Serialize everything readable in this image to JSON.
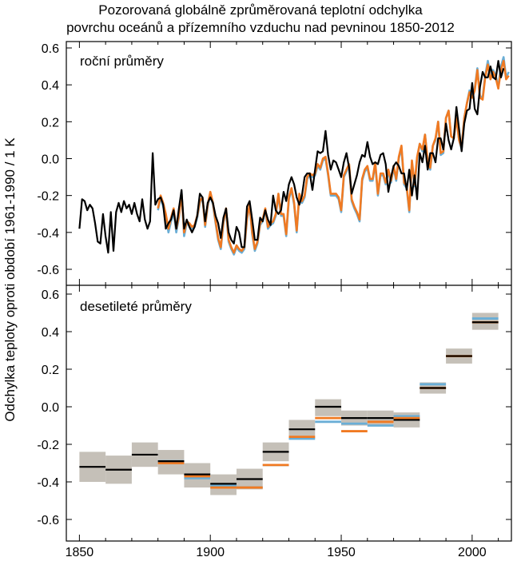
{
  "title_lines": [
    "Pozorovaná globálně zprůměrovaná teplotní odchylka",
    "povrchu oceánů a přízemního vzduchu nad pevninou 1850-2012"
  ],
  "chart_data": {
    "type": "line",
    "title": "Pozorovaná globálně zprůměrovaná teplotní odchylka povrchu oceánů a přízemního vzduchu nad pevninou 1850-2012",
    "ylabel": "Odchylka teploty oproti období 1961-1990  /  1 K",
    "xlabel": "",
    "xlim": [
      1845,
      2015
    ],
    "x_ticks": [
      1850,
      1900,
      1950,
      2000
    ],
    "grid": false,
    "colors": {
      "black": "#000000",
      "blue": "#6aaed6",
      "orange": "#f07a22",
      "uncertainty": "#c5c0b8"
    },
    "panels": [
      {
        "label": "roční průměry",
        "type": "line",
        "ylim": [
          -0.68,
          0.62
        ],
        "y_ticks": [
          -0.6,
          -0.4,
          -0.2,
          0.0,
          0.2,
          0.4,
          0.6
        ],
        "series": [
          {
            "color": "black",
            "x_start": 1850,
            "values": [
              -0.38,
              -0.22,
              -0.23,
              -0.28,
              -0.25,
              -0.27,
              -0.35,
              -0.45,
              -0.46,
              -0.3,
              -0.42,
              -0.51,
              -0.29,
              -0.5,
              -0.29,
              -0.24,
              -0.29,
              -0.23,
              -0.27,
              -0.25,
              -0.3,
              -0.24,
              -0.3,
              -0.34,
              -0.22,
              -0.33,
              -0.38,
              -0.34,
              0.03,
              -0.25,
              -0.22,
              -0.21,
              -0.25,
              -0.38,
              -0.35,
              -0.33,
              -0.28,
              -0.38,
              -0.27,
              -0.17,
              -0.38,
              -0.33,
              -0.37,
              -0.4,
              -0.37,
              -0.31,
              -0.19,
              -0.21,
              -0.34,
              -0.24,
              -0.21,
              -0.24,
              -0.31,
              -0.35,
              -0.43,
              -0.32,
              -0.27,
              -0.4,
              -0.44,
              -0.46,
              -0.37,
              -0.4,
              -0.48,
              -0.48,
              -0.26,
              -0.23,
              -0.33,
              -0.44,
              -0.44,
              -0.32,
              -0.34,
              -0.28,
              -0.33,
              -0.36,
              -0.2,
              -0.28,
              -0.3,
              -0.28,
              -0.18,
              -0.23,
              -0.14,
              -0.1,
              -0.14,
              -0.21,
              -0.25,
              -0.2,
              -0.1,
              -0.08,
              -0.08,
              -0.17,
              -0.06,
              0.04,
              0.03,
              0.04,
              0.15,
              0.02,
              -0.06,
              -0.01,
              -0.02,
              -0.06,
              -0.1,
              -0.02,
              0.03,
              -0.05,
              -0.19,
              -0.14,
              -0.09,
              -0.02,
              0.02,
              0.01,
              0.09,
              0.01,
              -0.03,
              -0.02,
              -0.03,
              0.02,
              0.03,
              -0.03,
              -0.18,
              -0.1,
              -0.04,
              -0.02,
              -0.04,
              -0.08,
              -0.08,
              -0.17,
              -0.06,
              -0.2,
              -0.09,
              -0.22,
              0.03,
              -0.02,
              0.07,
              -0.06,
              0.03,
              0.03,
              -0.02,
              0.11,
              0.11,
              0.05,
              0.19,
              0.1,
              0.05,
              0.11,
              0.28,
              0.16,
              0.04,
              0.19,
              0.26,
              0.27,
              0.41,
              0.27,
              0.24,
              0.39,
              0.47,
              0.44,
              0.44,
              0.5,
              0.44,
              0.43,
              0.53,
              0.44,
              0.49
            ]
          },
          {
            "color": "blue",
            "x_start": 1880,
            "values": [
              -0.28,
              -0.21,
              -0.26,
              -0.31,
              -0.4,
              -0.34,
              -0.29,
              -0.4,
              -0.32,
              -0.18,
              -0.42,
              -0.35,
              -0.36,
              -0.38,
              -0.37,
              -0.32,
              -0.24,
              -0.21,
              -0.37,
              -0.26,
              -0.19,
              -0.25,
              -0.35,
              -0.44,
              -0.49,
              -0.35,
              -0.28,
              -0.45,
              -0.49,
              -0.52,
              -0.48,
              -0.5,
              -0.51,
              -0.49,
              -0.33,
              -0.25,
              -0.41,
              -0.5,
              -0.46,
              -0.36,
              -0.34,
              -0.28,
              -0.38,
              -0.36,
              -0.35,
              -0.31,
              -0.2,
              -0.31,
              -0.31,
              -0.42,
              -0.22,
              -0.17,
              -0.25,
              -0.4,
              -0.2,
              -0.24,
              -0.21,
              -0.11,
              -0.09,
              -0.1,
              -0.09,
              -0.04,
              -0.06,
              -0.01,
              0.0,
              -0.09,
              -0.2,
              -0.2,
              -0.2,
              -0.22,
              -0.29,
              -0.1,
              -0.07,
              -0.04,
              -0.23,
              -0.27,
              -0.3,
              -0.34,
              -0.12,
              -0.07,
              -0.05,
              -0.12,
              -0.12,
              -0.03,
              -0.2,
              -0.09,
              -0.09,
              -0.14,
              -0.07,
              -0.13,
              -0.05,
              -0.12,
              0.0,
              0.06,
              -0.14,
              -0.16,
              -0.29,
              -0.02,
              -0.15,
              0.0,
              0.08,
              0.04,
              0.13,
              -0.02,
              -0.06,
              0.07,
              0.1,
              0.2,
              0.02,
              0.03,
              0.22,
              0.26,
              0.12,
              0.11,
              0.22,
              0.1,
              0.05,
              0.22,
              0.3,
              0.37,
              0.34,
              0.38,
              0.49,
              0.34,
              0.33,
              0.45,
              0.53,
              0.45,
              0.48,
              0.45,
              0.39,
              0.5,
              0.55,
              0.44,
              0.47
            ]
          },
          {
            "color": "orange",
            "x_start": 1880,
            "values": [
              -0.27,
              -0.2,
              -0.24,
              -0.3,
              -0.38,
              -0.32,
              -0.27,
              -0.38,
              -0.31,
              -0.19,
              -0.4,
              -0.34,
              -0.35,
              -0.37,
              -0.36,
              -0.31,
              -0.23,
              -0.21,
              -0.36,
              -0.25,
              -0.18,
              -0.24,
              -0.34,
              -0.43,
              -0.48,
              -0.34,
              -0.27,
              -0.44,
              -0.48,
              -0.51,
              -0.47,
              -0.49,
              -0.5,
              -0.48,
              -0.32,
              -0.25,
              -0.4,
              -0.49,
              -0.45,
              -0.35,
              -0.33,
              -0.27,
              -0.37,
              -0.35,
              -0.34,
              -0.3,
              -0.19,
              -0.3,
              -0.3,
              -0.41,
              -0.21,
              -0.16,
              -0.24,
              -0.39,
              -0.19,
              -0.23,
              -0.2,
              -0.1,
              -0.08,
              -0.09,
              -0.08,
              -0.03,
              -0.05,
              0.0,
              0.01,
              -0.08,
              -0.19,
              -0.19,
              -0.19,
              -0.21,
              -0.28,
              -0.09,
              -0.06,
              -0.03,
              -0.22,
              -0.26,
              -0.29,
              -0.33,
              -0.11,
              -0.06,
              -0.04,
              -0.11,
              -0.11,
              -0.02,
              -0.19,
              -0.08,
              -0.08,
              -0.13,
              -0.06,
              -0.12,
              -0.04,
              -0.11,
              0.01,
              0.07,
              -0.13,
              -0.15,
              -0.28,
              -0.01,
              -0.14,
              0.01,
              0.08,
              0.05,
              0.13,
              -0.01,
              -0.05,
              0.07,
              0.11,
              0.2,
              0.03,
              0.04,
              0.22,
              0.26,
              0.12,
              0.11,
              0.22,
              0.1,
              0.06,
              0.22,
              0.3,
              0.36,
              0.33,
              0.37,
              0.48,
              0.33,
              0.32,
              0.44,
              0.51,
              0.43,
              0.47,
              0.44,
              0.38,
              0.48,
              0.53,
              0.43,
              0.45
            ]
          }
        ]
      },
      {
        "label": "desetileté průměry",
        "type": "decadal",
        "ylim": [
          -0.68,
          0.62
        ],
        "y_ticks": [
          -0.6,
          -0.4,
          -0.2,
          0.0,
          0.2,
          0.4,
          0.6
        ],
        "decades": [
          {
            "start": 1850,
            "end": 1860,
            "black": -0.32,
            "low": -0.4,
            "high": -0.24,
            "blue": null,
            "orange": null
          },
          {
            "start": 1860,
            "end": 1870,
            "black": -0.335,
            "low": -0.41,
            "high": -0.26,
            "blue": null,
            "orange": null
          },
          {
            "start": 1870,
            "end": 1880,
            "black": -0.255,
            "low": -0.32,
            "high": -0.19,
            "blue": null,
            "orange": null
          },
          {
            "start": 1880,
            "end": 1890,
            "black": -0.29,
            "low": -0.36,
            "high": -0.23,
            "blue": -0.29,
            "orange": -0.3
          },
          {
            "start": 1890,
            "end": 1900,
            "black": -0.36,
            "low": -0.43,
            "high": -0.3,
            "blue": -0.38,
            "orange": -0.37
          },
          {
            "start": 1900,
            "end": 1910,
            "black": -0.41,
            "low": -0.47,
            "high": -0.36,
            "blue": -0.42,
            "orange": -0.43
          },
          {
            "start": 1910,
            "end": 1920,
            "black": -0.385,
            "low": -0.44,
            "high": -0.33,
            "blue": -0.43,
            "orange": -0.43
          },
          {
            "start": 1920,
            "end": 1930,
            "black": -0.24,
            "low": -0.29,
            "high": -0.19,
            "blue": -0.31,
            "orange": -0.31
          },
          {
            "start": 1930,
            "end": 1940,
            "black": -0.12,
            "low": -0.17,
            "high": -0.07,
            "blue": -0.17,
            "orange": -0.16
          },
          {
            "start": 1940,
            "end": 1950,
            "black": 0.0,
            "low": -0.05,
            "high": 0.04,
            "blue": -0.08,
            "orange": -0.06
          },
          {
            "start": 1950,
            "end": 1960,
            "black": -0.06,
            "low": -0.1,
            "high": -0.02,
            "blue": -0.09,
            "orange": -0.13
          },
          {
            "start": 1960,
            "end": 1970,
            "black": -0.06,
            "low": -0.1,
            "high": -0.02,
            "blue": -0.1,
            "orange": -0.08
          },
          {
            "start": 1970,
            "end": 1980,
            "black": -0.07,
            "low": -0.11,
            "high": -0.03,
            "blue": -0.05,
            "orange": -0.06
          },
          {
            "start": 1980,
            "end": 1990,
            "black": 0.1,
            "low": 0.07,
            "high": 0.13,
            "blue": 0.12,
            "orange": 0.1
          },
          {
            "start": 1990,
            "end": 2000,
            "black": 0.27,
            "low": 0.23,
            "high": 0.31,
            "blue": 0.27,
            "orange": 0.27
          },
          {
            "start": 2000,
            "end": 2010,
            "black": 0.45,
            "low": 0.41,
            "high": 0.5,
            "blue": 0.47,
            "orange": 0.45
          }
        ]
      }
    ]
  }
}
